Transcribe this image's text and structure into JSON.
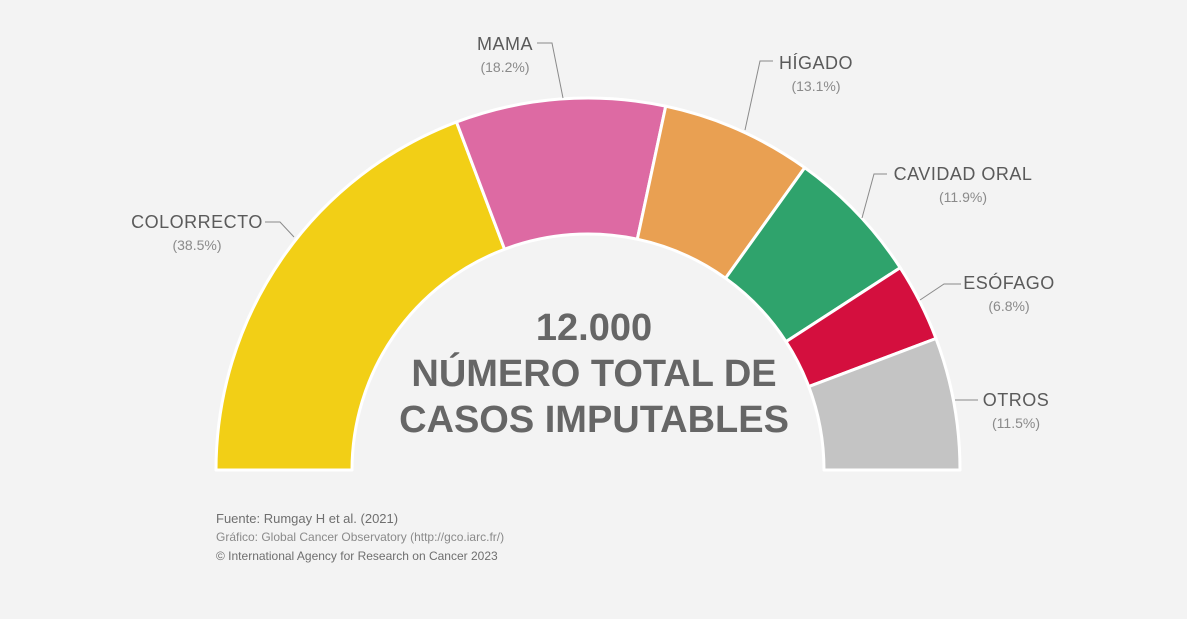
{
  "chart_data": {
    "type": "pie",
    "subtype": "semi-donut",
    "total_value": "12.000",
    "center_line1": "NÚMERO TOTAL DE",
    "center_line2": "CASOS IMPUTABLES",
    "series": [
      {
        "name": "COLORRECTO",
        "label": "(38.5%)",
        "value": 38.5,
        "color": "#f2cf16"
      },
      {
        "name": "MAMA",
        "label": "(18.2%)",
        "value": 18.2,
        "color": "#dd6aa3"
      },
      {
        "name": "HÍGADO",
        "label": "(13.1%)",
        "value": 13.1,
        "color": "#e9a052"
      },
      {
        "name": "CAVIDAD ORAL",
        "label": "(11.9%)",
        "value": 11.9,
        "color": "#2fa36c"
      },
      {
        "name": "ESÓFAGO",
        "label": "(6.8%)",
        "value": 6.8,
        "color": "#d40f3e"
      },
      {
        "name": "OTROS",
        "label": "(11.5%)",
        "value": 11.5,
        "color": "#c4c4c4"
      }
    ]
  },
  "footer": {
    "source": "Fuente: Rumgay H et al. (2021)",
    "graphic": "Gráfico: Global Cancer Observatory (http://gco.iarc.fr/)",
    "copyright": "© International Agency for Research on Cancer 2023"
  }
}
